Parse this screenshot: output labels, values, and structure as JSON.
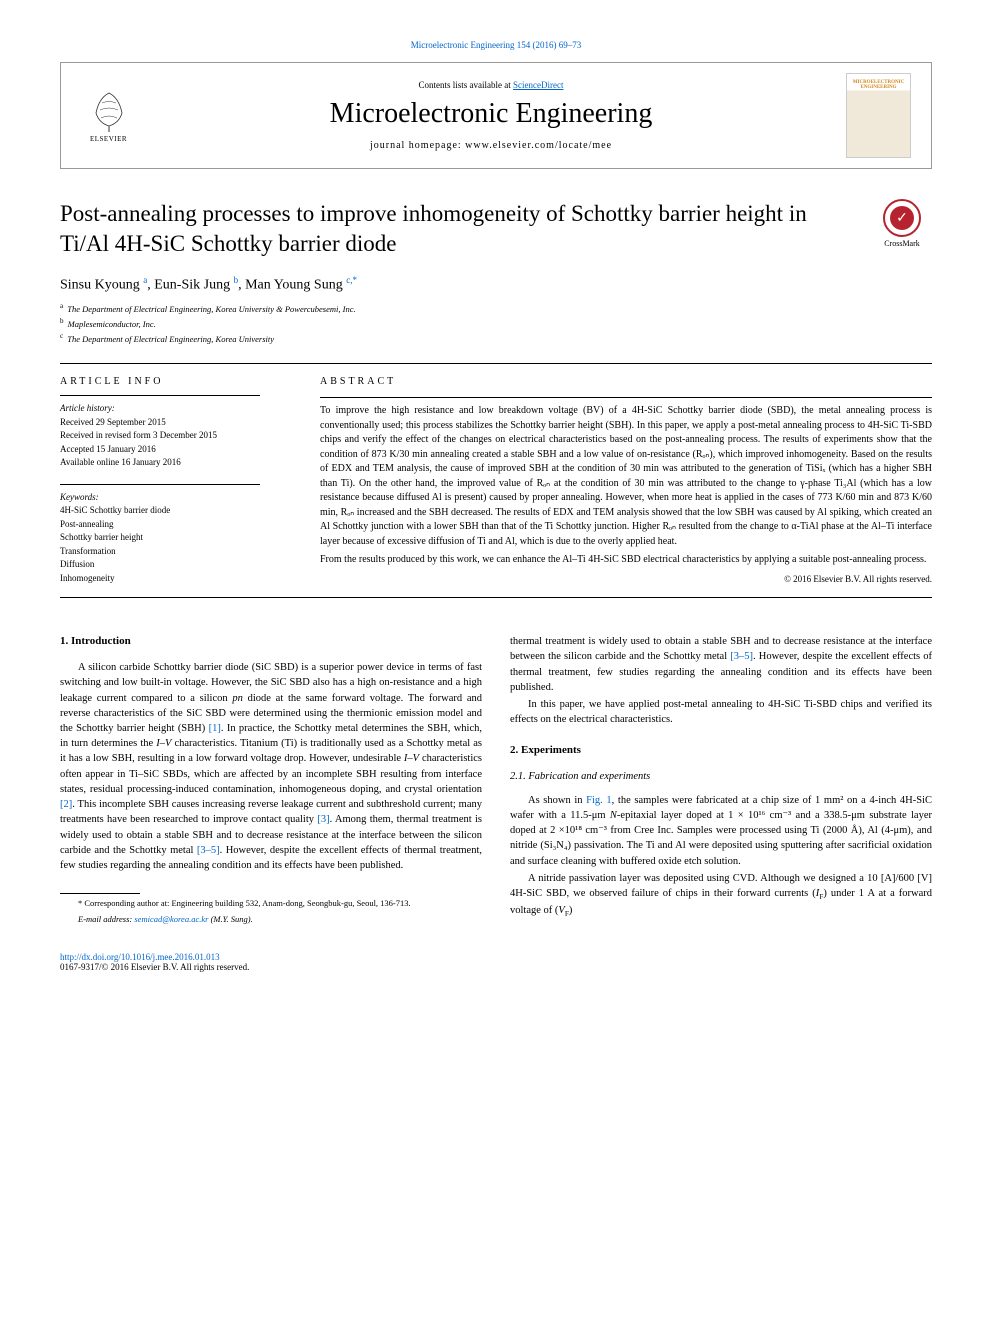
{
  "meta": {
    "top_citation": "Microelectronic Engineering 154 (2016) 69–73",
    "contents_text": "Contents lists available at ",
    "contents_link": "ScienceDirect",
    "journal_name": "Microelectronic Engineering",
    "homepage_label": "journal homepage: ",
    "homepage_url": "www.elsevier.com/locate/mee",
    "elsevier_label": "ELSEVIER",
    "cover_title": "MICROELECTRONIC ENGINEERING",
    "crossmark_label": "CrossMark"
  },
  "title": "Post-annealing processes to improve inhomogeneity of Schottky barrier height in Ti/Al 4H-SiC Schottky barrier diode",
  "authors_html": "Sinsu Kyoung <sup>a</sup>, Eun-Sik Jung <sup>b</sup>, Man Young Sung <sup>c,*</sup>",
  "affiliations": [
    {
      "sup": "a",
      "text": "The Department of Electrical Engineering, Korea University & Powercubesemi, Inc."
    },
    {
      "sup": "b",
      "text": "Maplesemiconductor, Inc."
    },
    {
      "sup": "c",
      "text": "The Department of Electrical Engineering, Korea University"
    }
  ],
  "article_info": {
    "label": "article info",
    "history_title": "Article history:",
    "history": [
      "Received 29 September 2015",
      "Received in revised form 3 December 2015",
      "Accepted 15 January 2016",
      "Available online 16 January 2016"
    ],
    "keywords_title": "Keywords:",
    "keywords": [
      "4H-SiC Schottky barrier diode",
      "Post-annealing",
      "Schottky barrier height",
      "Transformation",
      "Diffusion",
      "Inhomogeneity"
    ]
  },
  "abstract": {
    "label": "abstract",
    "paragraphs": [
      "To improve the high resistance and low breakdown voltage (BV) of a 4H-SiC Schottky barrier diode (SBD), the metal annealing process is conventionally used; this process stabilizes the Schottky barrier height (SBH). In this paper, we apply a post-metal annealing process to 4H-SiC Ti-SBD chips and verify the effect of the changes on electrical characteristics based on the post-annealing process. The results of experiments show that the condition of 873 K/30 min annealing created a stable SBH and a low value of on-resistance (Rₒₙ), which improved inhomogeneity. Based on the results of EDX and TEM analysis, the cause of improved SBH at the condition of 30 min was attributed to the generation of TiSiₓ (which has a higher SBH than Ti). On the other hand, the improved value of Rₒₙ at the condition of 30 min was attributed to the change to γ-phase Ti₃Al (which has a low resistance because diffused Al is present) caused by proper annealing. However, when more heat is applied in the cases of 773 K/60 min and 873 K/60 min, Rₒₙ increased and the SBH decreased. The results of EDX and TEM analysis showed that the low SBH was caused by Al spiking, which created an Al Schottky junction with a lower SBH than that of the Ti Schottky junction. Higher Rₒₙ resulted from the change to α-TiAl phase at the Al–Ti interface layer because of excessive diffusion of Ti and Al, which is due to the overly applied heat.",
      "From the results produced by this work, we can enhance the Al–Ti 4H-SiC SBD electrical characteristics by applying a suitable post-annealing process."
    ],
    "copyright": "© 2016 Elsevier B.V. All rights reserved."
  },
  "body": {
    "intro_heading": "1. Introduction",
    "intro_html": "A silicon carbide Schottky barrier diode (SiC SBD) is a superior power device in terms of fast switching and low built-in voltage. However, the SiC SBD also has a high on-resistance and a high leakage current compared to a silicon <i>pn</i> diode at the same forward voltage. The forward and reverse characteristics of the SiC SBD were determined using the thermionic emission model and the Schottky barrier height (SBH) <a href='#'>[1]</a>. In practice, the Schottky metal determines the SBH, which, in turn determines the <i>I–V</i> characteristics. Titanium (Ti) is traditionally used as a Schottky metal as it has a low SBH, resulting in a low forward voltage drop. However, undesirable <i>I–V</i> characteristics often appear in Ti–SiC SBDs, which are affected by an incomplete SBH resulting from interface states, residual processing-induced contamination, inhomogeneous doping, and crystal orientation <a href='#'>[2]</a>. This incomplete SBH causes increasing reverse leakage current and subthreshold current; many treatments have been researched to improve contact quality <a href='#'>[3]</a>. Among them, thermal treatment is widely used to obtain a stable SBH and to decrease resistance at the interface between the silicon carbide and the Schottky metal <a href='#'>[3–5]</a>. However, despite the excellent effects of thermal treatment, few studies regarding the annealing condition and its effects have been published.",
    "intro_p2": "In this paper, we have applied post-metal annealing to 4H-SiC Ti-SBD chips and verified its effects on the electrical characteristics.",
    "exp_heading": "2. Experiments",
    "exp_sub_heading": "2.1. Fabrication and experiments",
    "exp_p1_html": "As shown in <a href='#'>Fig. 1</a>, the samples were fabricated at a chip size of 1 mm² on a 4-inch 4H-SiC wafer with a 11.5-μm <i>N</i>-epitaxial layer doped at 1 × 10¹⁶ cm⁻³ and a 338.5-μm substrate layer doped at 2 ×10¹⁸ cm⁻³ from Cree Inc. Samples were processed using Ti (2000 Å), Al (4-μm), and nitride (Si₃N₄) passivation. The Ti and Al were deposited using sputtering after sacrificial oxidation and surface cleaning with buffered oxide etch solution.",
    "exp_p2_html": "A nitride passivation layer was deposited using CVD. Although we designed a 10 [A]/600 [V] 4H-SiC SBD, we observed failure of chips in their forward currents (<i>I</i><sub>F</sub>) under 1 A at a forward voltage of (<i>V</i><sub>F</sub>)"
  },
  "footnote": {
    "corr": "* Corresponding author at: Engineering building 532, Anam-dong, Seongbuk-gu, Seoul, 136-713.",
    "email_label": "E-mail address: ",
    "email": "semicad@korea.ac.kr",
    "email_suffix": " (M.Y. Sung)."
  },
  "footer": {
    "doi": "http://dx.doi.org/10.1016/j.mee.2016.01.013",
    "issn_copyright": "0167-9317/© 2016 Elsevier B.V. All rights reserved."
  },
  "colors": {
    "link": "#0066cc",
    "text": "#000000",
    "crossmark_red": "#b6232e"
  }
}
